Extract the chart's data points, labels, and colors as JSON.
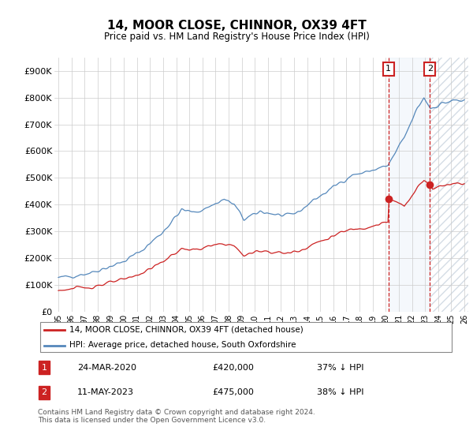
{
  "title": "14, MOOR CLOSE, CHINNOR, OX39 4FT",
  "subtitle": "Price paid vs. HM Land Registry's House Price Index (HPI)",
  "ylim": [
    0,
    950000
  ],
  "yticks": [
    0,
    100000,
    200000,
    300000,
    400000,
    500000,
    600000,
    700000,
    800000,
    900000
  ],
  "ytick_labels": [
    "£0",
    "£100K",
    "£200K",
    "£300K",
    "£400K",
    "£500K",
    "£600K",
    "£700K",
    "£800K",
    "£900K"
  ],
  "hpi_color": "#5588bb",
  "price_color": "#cc2222",
  "annotation_box_color": "#cc2222",
  "background_color": "#ffffff",
  "grid_color": "#cccccc",
  "legend_label_red": "14, MOOR CLOSE, CHINNOR, OX39 4FT (detached house)",
  "legend_label_blue": "HPI: Average price, detached house, South Oxfordshire",
  "annotation1_label": "1",
  "annotation1_date": "24-MAR-2020",
  "annotation1_price": "£420,000",
  "annotation1_hpi": "37% ↓ HPI",
  "annotation2_label": "2",
  "annotation2_date": "11-MAY-2023",
  "annotation2_price": "£475,000",
  "annotation2_hpi": "38% ↓ HPI",
  "footer": "Contains HM Land Registry data © Crown copyright and database right 2024.\nThis data is licensed under the Open Government Licence v3.0.",
  "sale1_x": 2020.21,
  "sale1_y": 420000,
  "sale2_x": 2023.37,
  "sale2_y": 475000,
  "xlim_left": 1994.7,
  "xlim_right": 2026.3,
  "xticks": [
    1995,
    1996,
    1997,
    1998,
    1999,
    2000,
    2001,
    2002,
    2003,
    2004,
    2005,
    2006,
    2007,
    2008,
    2009,
    2010,
    2011,
    2012,
    2013,
    2014,
    2015,
    2016,
    2017,
    2018,
    2019,
    2020,
    2021,
    2022,
    2023,
    2024,
    2025,
    2026
  ],
  "hpi_color_fill": "#ccddef",
  "hatch_color": "#aabbcc"
}
